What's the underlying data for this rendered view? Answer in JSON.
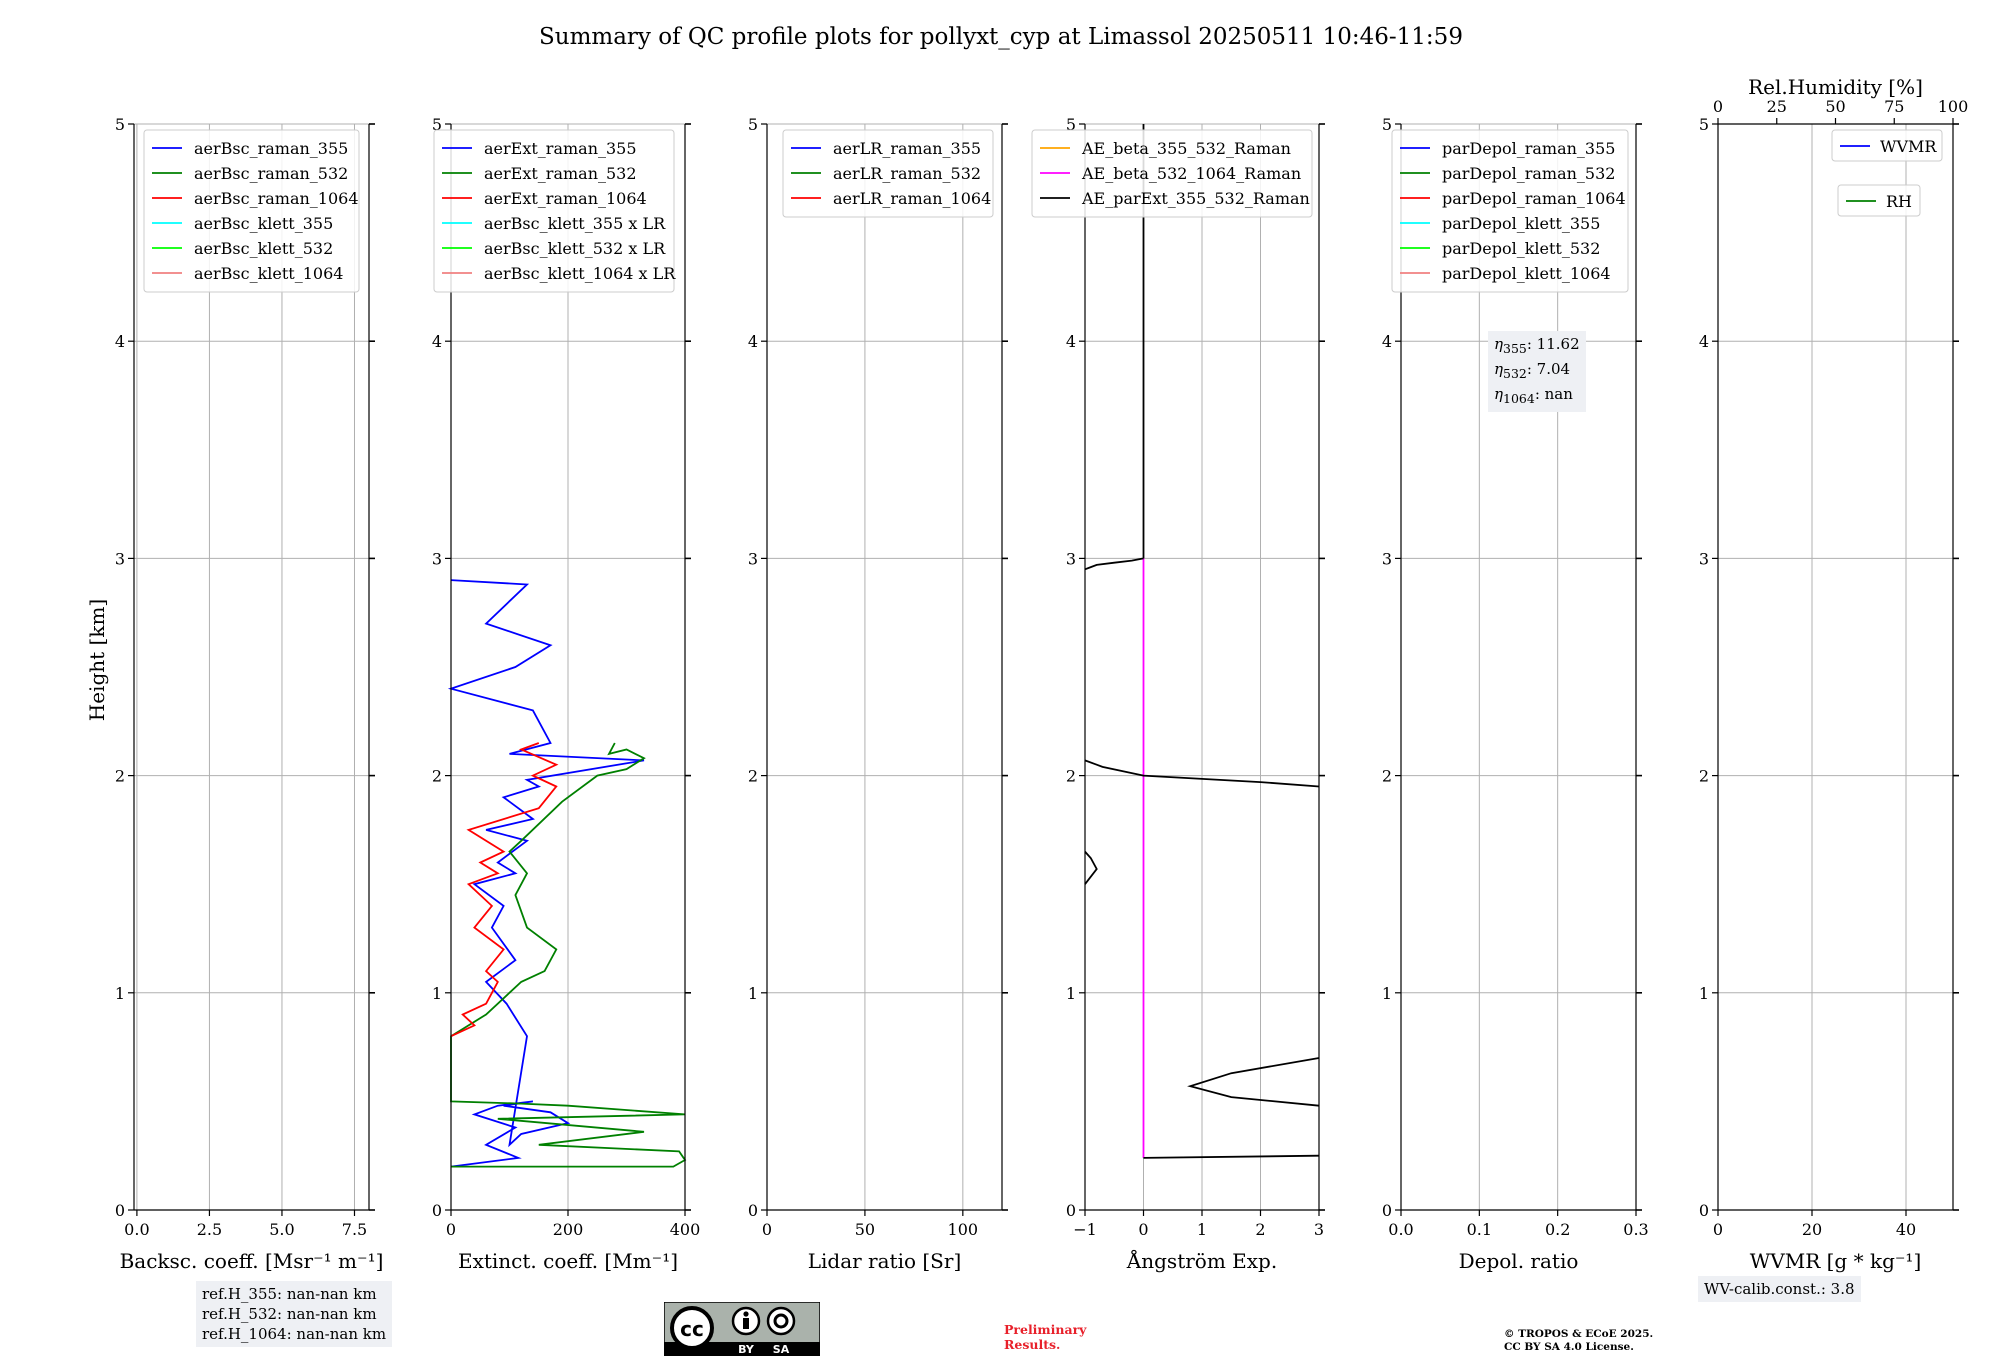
{
  "figure_title": "Summary of QC profile plots for pollyxt_cyp at Limassol 20250511 10:46-11:59",
  "y_axis_label": "Height [km]",
  "notes": {
    "ref_heights": [
      "ref.H_355: nan-nan km",
      "ref.H_532: nan-nan km",
      "ref.H_1064: nan-nan km"
    ],
    "eta_label": "η",
    "eta": [
      {
        "sub": "355",
        "value": ": 11.62"
      },
      {
        "sub": "532",
        "value": ": 7.04"
      },
      {
        "sub": "1064",
        "value": ": nan"
      }
    ],
    "wv_calib": "WV-calib.const.: 3.8",
    "preliminary": [
      "Preliminary",
      "Results."
    ],
    "copyright": [
      "© TROPOS & ECoE 2025.",
      "CC BY SA 4.0 License."
    ],
    "license_badge": {
      "cc": "cc",
      "by": "BY",
      "sa": "SA"
    }
  },
  "colors": {
    "blue": "#0000ff",
    "green": "#008000",
    "red": "#ff0000",
    "cyan": "#00ffff",
    "lime": "#00ff00",
    "salmon": "#f08080",
    "orange": "#ffa500",
    "magenta": "#ff00ff",
    "black": "#000000"
  },
  "chart_data": [
    {
      "id": "bsc",
      "type": "line",
      "xlabel": "Backsc. coeff. [Msr⁻¹ m⁻¹]",
      "ylabel": "Height [km]",
      "xlim": [
        -0.1,
        8.0
      ],
      "ylim": [
        0,
        5
      ],
      "xticks": [
        0,
        2.5,
        5,
        7.5
      ],
      "xtick_labels": [
        "0.0",
        "2.5",
        "5.0",
        "7.5"
      ],
      "yticks": [
        0,
        1,
        2,
        3,
        4,
        5
      ],
      "ytick_labels": [
        "0",
        "1",
        "2",
        "3",
        "4",
        "5"
      ],
      "grid": true,
      "legend_position": "upper-left",
      "series": [
        {
          "name": "aerBsc_raman_355",
          "color": "#0000ff",
          "x": [],
          "y": []
        },
        {
          "name": "aerBsc_raman_532",
          "color": "#008000",
          "x": [],
          "y": []
        },
        {
          "name": "aerBsc_raman_1064",
          "color": "#ff0000",
          "x": [],
          "y": []
        },
        {
          "name": "aerBsc_klett_355",
          "color": "#00ffff",
          "x": [],
          "y": []
        },
        {
          "name": "aerBsc_klett_532",
          "color": "#00ff00",
          "x": [],
          "y": []
        },
        {
          "name": "aerBsc_klett_1064",
          "color": "#f08080",
          "x": [],
          "y": []
        }
      ]
    },
    {
      "id": "ext",
      "type": "line",
      "xlabel": "Extinct. coeff. [Mm⁻¹]",
      "ylabel": "Height [km]",
      "xlim": [
        0,
        400
      ],
      "ylim": [
        0,
        5
      ],
      "xticks": [
        0,
        200,
        400
      ],
      "xtick_labels": [
        "0",
        "200",
        "400"
      ],
      "yticks": [
        0,
        1,
        2,
        3,
        4,
        5
      ],
      "ytick_labels": [
        "0",
        "1",
        "2",
        "3",
        "4",
        "5"
      ],
      "grid": true,
      "legend_position": "upper-left",
      "series": [
        {
          "name": "aerExt_raman_355",
          "color": "#0000ff",
          "x": [
            0,
            115,
            60,
            110,
            40,
            80,
            140,
            90,
            170,
            200,
            120,
            100,
            130,
            95,
            60,
            110,
            70,
            90,
            40,
            110,
            80,
            130,
            60,
            140,
            90,
            150,
            130,
            330,
            100,
            170,
            140,
            0,
            110,
            170,
            60,
            130,
            0
          ],
          "y": [
            0.2,
            0.24,
            0.3,
            0.38,
            0.44,
            0.48,
            0.5,
            0.48,
            0.45,
            0.4,
            0.35,
            0.3,
            0.8,
            0.95,
            1.05,
            1.15,
            1.3,
            1.4,
            1.5,
            1.55,
            1.6,
            1.7,
            1.75,
            1.8,
            1.9,
            1.95,
            1.98,
            2.07,
            2.1,
            2.15,
            2.3,
            2.4,
            2.5,
            2.6,
            2.7,
            2.88,
            2.9
          ]
        },
        {
          "name": "aerExt_raman_532",
          "color": "#008000",
          "x": [
            0,
            380,
            400,
            390,
            150,
            330,
            80,
            400,
            200,
            120,
            0,
            0,
            60,
            120,
            160,
            180,
            130,
            110,
            130,
            100,
            120,
            190,
            250,
            300,
            330,
            300,
            270,
            280
          ],
          "y": [
            0.2,
            0.2,
            0.23,
            0.27,
            0.3,
            0.36,
            0.42,
            0.44,
            0.48,
            0.49,
            0.5,
            0.8,
            0.9,
            1.05,
            1.1,
            1.2,
            1.3,
            1.45,
            1.55,
            1.65,
            1.7,
            1.88,
            2.0,
            2.03,
            2.08,
            2.12,
            2.1,
            2.15
          ]
        },
        {
          "name": "aerExt_raman_1064",
          "color": "#ff0000",
          "x": [
            0,
            40,
            20,
            60,
            80,
            60,
            90,
            40,
            70,
            30,
            80,
            50,
            90,
            30,
            150,
            180,
            140,
            180,
            120,
            150
          ],
          "y": [
            0.8,
            0.85,
            0.9,
            0.95,
            1.05,
            1.1,
            1.2,
            1.3,
            1.4,
            1.5,
            1.55,
            1.6,
            1.65,
            1.75,
            1.85,
            1.95,
            2.0,
            2.05,
            2.12,
            2.15
          ]
        },
        {
          "name": "aerBsc_klett_355 x LR",
          "color": "#00ffff",
          "x": [],
          "y": []
        },
        {
          "name": "aerBsc_klett_532 x LR",
          "color": "#00ff00",
          "x": [],
          "y": []
        },
        {
          "name": "aerBsc_klett_1064 x LR",
          "color": "#f08080",
          "x": [],
          "y": []
        }
      ]
    },
    {
      "id": "lr",
      "type": "line",
      "xlabel": "Lidar ratio [Sr]",
      "ylabel": "Height [km]",
      "xlim": [
        0,
        120
      ],
      "ylim": [
        0,
        5
      ],
      "xticks": [
        0,
        50,
        100
      ],
      "xtick_labels": [
        "0",
        "50",
        "100"
      ],
      "yticks": [
        0,
        1,
        2,
        3,
        4,
        5
      ],
      "ytick_labels": [
        "0",
        "1",
        "2",
        "3",
        "4",
        "5"
      ],
      "grid": true,
      "legend_position": "upper-left",
      "series": [
        {
          "name": "aerLR_raman_355",
          "color": "#0000ff",
          "x": [],
          "y": []
        },
        {
          "name": "aerLR_raman_532",
          "color": "#008000",
          "x": [],
          "y": []
        },
        {
          "name": "aerLR_raman_1064",
          "color": "#ff0000",
          "x": [],
          "y": []
        }
      ]
    },
    {
      "id": "ae",
      "type": "line",
      "xlabel": "Ångström Exp.",
      "ylabel": "Height [km]",
      "xlim": [
        -1,
        3
      ],
      "ylim": [
        0,
        5
      ],
      "xticks": [
        -1,
        0,
        1,
        2,
        3
      ],
      "xtick_labels": [
        "−1",
        "0",
        "1",
        "2",
        "3"
      ],
      "yticks": [
        0,
        1,
        2,
        3,
        4,
        5
      ],
      "ytick_labels": [
        "0",
        "1",
        "2",
        "3",
        "4",
        "5"
      ],
      "grid": true,
      "legend_position": "upper-left",
      "series": [
        {
          "name": "AE_beta_355_532_Raman",
          "color": "#ffa500",
          "x": [],
          "y": []
        },
        {
          "name": "AE_beta_532_1064_Raman",
          "color": "#ff00ff",
          "x": [
            0,
            0
          ],
          "y": [
            0.24,
            3.0
          ]
        },
        {
          "name": "AE_parExt_355_532_Raman",
          "color": "#000000",
          "x": [
            0,
            0,
            3.0,
            null,
            3.0,
            1.5,
            0.8,
            1.5,
            3.0,
            null,
            -1,
            -0.8,
            -0.9,
            -1,
            null,
            -1,
            -0.8,
            -0.7,
            0,
            2.0,
            3.0,
            null,
            -1,
            -0.9,
            -0.8,
            -0.5,
            -0.2,
            0,
            0,
            null,
            0,
            3.0
          ],
          "y": [
            5,
            3.0,
            null,
            null,
            0.7,
            0.63,
            0.57,
            0.52,
            0.48,
            null,
            1.5,
            1.57,
            1.62,
            1.65,
            null,
            2.07,
            2.05,
            2.04,
            2.0,
            1.97,
            1.95,
            null,
            2.95,
            2.96,
            2.97,
            2.98,
            2.99,
            3.0,
            null,
            null,
            0.24,
            0.25
          ]
        }
      ]
    },
    {
      "id": "depol",
      "type": "line",
      "xlabel": "Depol. ratio",
      "ylabel": "Height [km]",
      "xlim": [
        0,
        0.3
      ],
      "ylim": [
        0,
        5
      ],
      "xticks": [
        0,
        0.1,
        0.2,
        0.3
      ],
      "xtick_labels": [
        "0.0",
        "0.1",
        "0.2",
        "0.3"
      ],
      "yticks": [
        0,
        1,
        2,
        3,
        4,
        5
      ],
      "ytick_labels": [
        "0",
        "1",
        "2",
        "3",
        "4",
        "5"
      ],
      "grid": true,
      "legend_position": "upper-left",
      "series": [
        {
          "name": "parDepol_raman_355",
          "color": "#0000ff",
          "x": [],
          "y": []
        },
        {
          "name": "parDepol_raman_532",
          "color": "#008000",
          "x": [],
          "y": []
        },
        {
          "name": "parDepol_raman_1064",
          "color": "#ff0000",
          "x": [],
          "y": []
        },
        {
          "name": "parDepol_klett_355",
          "color": "#00ffff",
          "x": [],
          "y": []
        },
        {
          "name": "parDepol_klett_532",
          "color": "#00ff00",
          "x": [],
          "y": []
        },
        {
          "name": "parDepol_klett_1064",
          "color": "#f08080",
          "x": [],
          "y": []
        }
      ]
    },
    {
      "id": "wv",
      "type": "line",
      "xlabel": "WVMR [g * kg⁻¹]",
      "ylabel": "Height [km]",
      "xlim": [
        0,
        50
      ],
      "ylim": [
        0,
        5
      ],
      "xticks": [
        0,
        20,
        40
      ],
      "xtick_labels": [
        "0",
        "20",
        "40"
      ],
      "top_xlabel": "Rel.Humidity [%]",
      "top_xlim": [
        0,
        100
      ],
      "top_xticks": [
        0,
        25,
        50,
        75,
        100
      ],
      "top_xtick_labels": [
        "0",
        "25",
        "50",
        "75",
        "100"
      ],
      "yticks": [
        0,
        1,
        2,
        3,
        4,
        5
      ],
      "ytick_labels": [
        "0",
        "1",
        "2",
        "3",
        "4",
        "5"
      ],
      "grid": true,
      "legend_position": "upper-right",
      "series": [
        {
          "name": "WVMR",
          "color": "#0000ff",
          "x": [],
          "y": []
        },
        {
          "name": "RH",
          "color": "#008000",
          "x": [],
          "y": []
        }
      ]
    }
  ]
}
